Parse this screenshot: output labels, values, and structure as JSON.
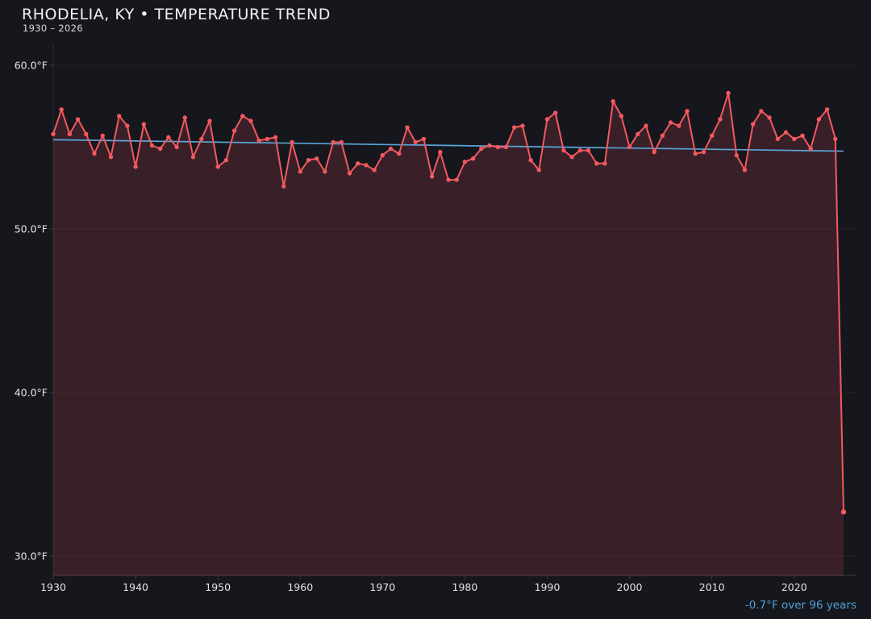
{
  "header": {
    "title": "RHODELIA, KY • TEMPERATURE TREND",
    "subtitle": "1930 – 2026"
  },
  "annotation": {
    "text": "-0.7°F over 96 years"
  },
  "chart_data": {
    "type": "line",
    "title": "RHODELIA, KY • TEMPERATURE TREND",
    "subtitle": "1930 – 2026",
    "x": [
      1930,
      1931,
      1932,
      1933,
      1934,
      1935,
      1936,
      1937,
      1938,
      1939,
      1940,
      1941,
      1942,
      1943,
      1944,
      1945,
      1946,
      1947,
      1948,
      1949,
      1950,
      1951,
      1952,
      1953,
      1954,
      1955,
      1956,
      1957,
      1958,
      1959,
      1960,
      1961,
      1962,
      1963,
      1964,
      1965,
      1966,
      1967,
      1968,
      1969,
      1970,
      1971,
      1972,
      1973,
      1974,
      1975,
      1976,
      1977,
      1978,
      1979,
      1980,
      1981,
      1982,
      1983,
      1984,
      1985,
      1986,
      1987,
      1988,
      1989,
      1990,
      1991,
      1992,
      1993,
      1994,
      1995,
      1996,
      1997,
      1998,
      1999,
      2000,
      2001,
      2002,
      2003,
      2004,
      2005,
      2006,
      2007,
      2008,
      2009,
      2010,
      2011,
      2012,
      2013,
      2014,
      2015,
      2016,
      2017,
      2018,
      2019,
      2020,
      2021,
      2022,
      2023,
      2024,
      2025,
      2026
    ],
    "values": [
      55.8,
      57.3,
      55.8,
      56.7,
      55.8,
      54.6,
      55.7,
      54.4,
      56.9,
      56.3,
      53.8,
      56.4,
      55.1,
      54.9,
      55.6,
      55.0,
      56.8,
      54.4,
      55.5,
      56.6,
      53.8,
      54.2,
      56.0,
      56.9,
      56.6,
      55.4,
      55.5,
      55.6,
      52.6,
      55.3,
      53.5,
      54.2,
      54.3,
      53.5,
      55.3,
      55.3,
      53.4,
      54.0,
      53.9,
      53.6,
      54.5,
      54.9,
      54.6,
      56.2,
      55.3,
      55.5,
      53.2,
      54.7,
      53.0,
      53.0,
      54.1,
      54.3,
      54.9,
      55.1,
      55.0,
      55.0,
      56.2,
      56.3,
      54.2,
      53.6,
      56.7,
      57.1,
      54.8,
      54.4,
      54.8,
      54.8,
      54.0,
      54.0,
      57.8,
      56.9,
      55.0,
      55.8,
      56.3,
      54.7,
      55.7,
      56.5,
      56.3,
      57.2,
      54.6,
      54.7,
      55.7,
      56.7,
      58.3,
      54.5,
      53.6,
      56.4,
      57.2,
      56.8,
      55.5,
      55.9,
      55.5,
      55.7,
      54.9,
      56.7,
      57.3,
      55.5,
      32.7
    ],
    "xlim": [
      1930,
      2026
    ],
    "ylim": [
      30,
      60
    ],
    "grid": true,
    "legend": false,
    "x_ticks": [
      {
        "v": 1930,
        "label": "1930"
      },
      {
        "v": 1940,
        "label": "1940"
      },
      {
        "v": 1950,
        "label": "1950"
      },
      {
        "v": 1960,
        "label": "1960"
      },
      {
        "v": 1970,
        "label": "1970"
      },
      {
        "v": 1980,
        "label": "1980"
      },
      {
        "v": 1990,
        "label": "1990"
      },
      {
        "v": 2000,
        "label": "2000"
      },
      {
        "v": 2010,
        "label": "2010"
      },
      {
        "v": 2020,
        "label": "2020"
      }
    ],
    "y_ticks": [
      {
        "v": 30,
        "label": "30.0°F"
      },
      {
        "v": 40,
        "label": "40.0°F"
      },
      {
        "v": 50,
        "label": "50.0°F"
      },
      {
        "v": 60,
        "label": "60.0°F"
      }
    ],
    "trend": {
      "start_year": 1930,
      "end_year": 2026,
      "start_value": 55.45,
      "end_value": 54.75,
      "annotation": "-0.7°F over 96 years"
    },
    "colors": {
      "line": "#f2595f",
      "fill": "rgba(240,90,100,0.16)",
      "trend": "#58a6d8",
      "grid": "rgba(255,255,255,0.05)",
      "axis": "#3c3c45",
      "tick_label": "#e4e4e8",
      "annotation": "#4da0d8",
      "background": "#16161d",
      "title": "#f2f2f4",
      "subtitle": "#d9d9dd"
    }
  }
}
